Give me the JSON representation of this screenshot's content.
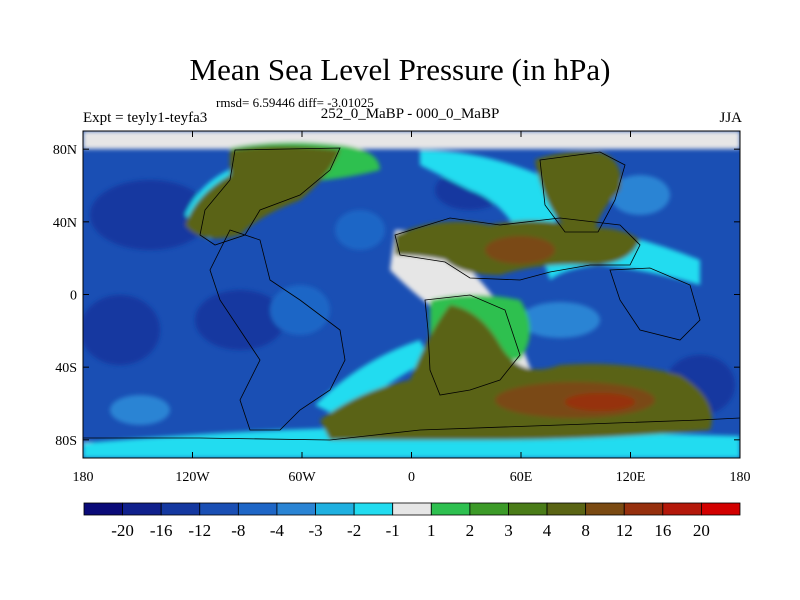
{
  "chart_data": {
    "type": "heatmap",
    "title": "Mean Sea Level Pressure (in hPa)",
    "stats": "rmsd= 6.59446 diff= -3.01025",
    "left_label": "Expt = teyly1-teyfa3",
    "center_label": "252_0_MaBP - 000_0_MaBP",
    "right_label": "JJA",
    "x_ticks": [
      "180",
      "120W",
      "60W",
      "0",
      "60E",
      "120E",
      "180"
    ],
    "y_ticks": [
      "80N",
      "40N",
      "0",
      "40S",
      "80S"
    ],
    "xlim": [
      -180,
      180
    ],
    "ylim": [
      -90,
      90
    ],
    "colorbar": {
      "labels": [
        "-20",
        "-16",
        "-12",
        "-8",
        "-4",
        "-3",
        "-2",
        "-1",
        "1",
        "2",
        "3",
        "4",
        "8",
        "12",
        "16",
        "20"
      ],
      "colors": [
        "#0a0a78",
        "#10208c",
        "#1438a0",
        "#1a4fb4",
        "#1e66c6",
        "#2a84d4",
        "#1fb0e0",
        "#22dcf0",
        "#e6e6e6",
        "#2ec050",
        "#3c9a28",
        "#4a7c18",
        "#5a6414",
        "#7a4a12",
        "#96300e",
        "#b4180a",
        "#d20000"
      ]
    }
  }
}
